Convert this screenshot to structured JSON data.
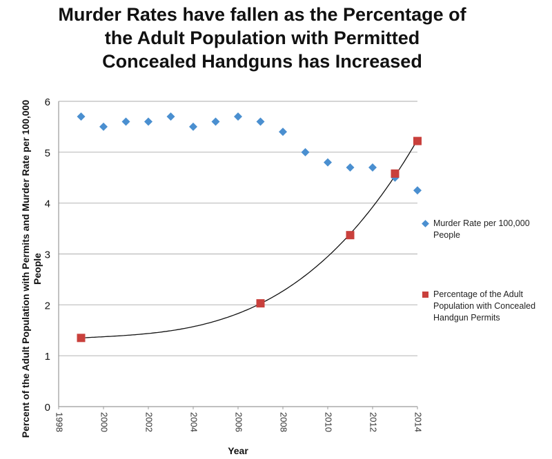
{
  "chart_data": {
    "type": "scatter",
    "title": "Murder Rates have fallen as the Percentage of\nthe Adult Population with Permitted\nConcealed Handguns has Increased",
    "xlabel": "Year",
    "ylabel": "Percent of the Adult Population with Permits and Murder Rate per 100,000 People",
    "xlim": [
      1998,
      2014
    ],
    "ylim": [
      0,
      6
    ],
    "x_ticks": [
      "1998",
      "2000",
      "2002",
      "2004",
      "2006",
      "2008",
      "2010",
      "2012",
      "2014"
    ],
    "y_ticks": [
      "0",
      "1",
      "2",
      "3",
      "4",
      "5",
      "6"
    ],
    "grid": "horizontal",
    "legend_position": "right",
    "series": [
      {
        "name": "Murder Rate per 100,000 People",
        "marker": "diamond",
        "color": "#4a8fd0",
        "x": [
          1999,
          2000,
          2001,
          2002,
          2003,
          2004,
          2005,
          2006,
          2007,
          2008,
          2009,
          2010,
          2011,
          2012,
          2013,
          2014
        ],
        "y": [
          5.7,
          5.5,
          5.6,
          5.6,
          5.7,
          5.5,
          5.6,
          5.7,
          5.6,
          5.4,
          5.0,
          4.8,
          4.7,
          4.7,
          4.5,
          4.25
        ]
      },
      {
        "name": "Percentage of the Adult Population with Concealed Handgun Permits",
        "marker": "square",
        "color": "#c9403c",
        "x": [
          1999,
          2007,
          2011,
          2013,
          2014
        ],
        "y": [
          1.35,
          2.03,
          3.37,
          4.58,
          5.22
        ],
        "trendline": "polynomial"
      }
    ]
  }
}
